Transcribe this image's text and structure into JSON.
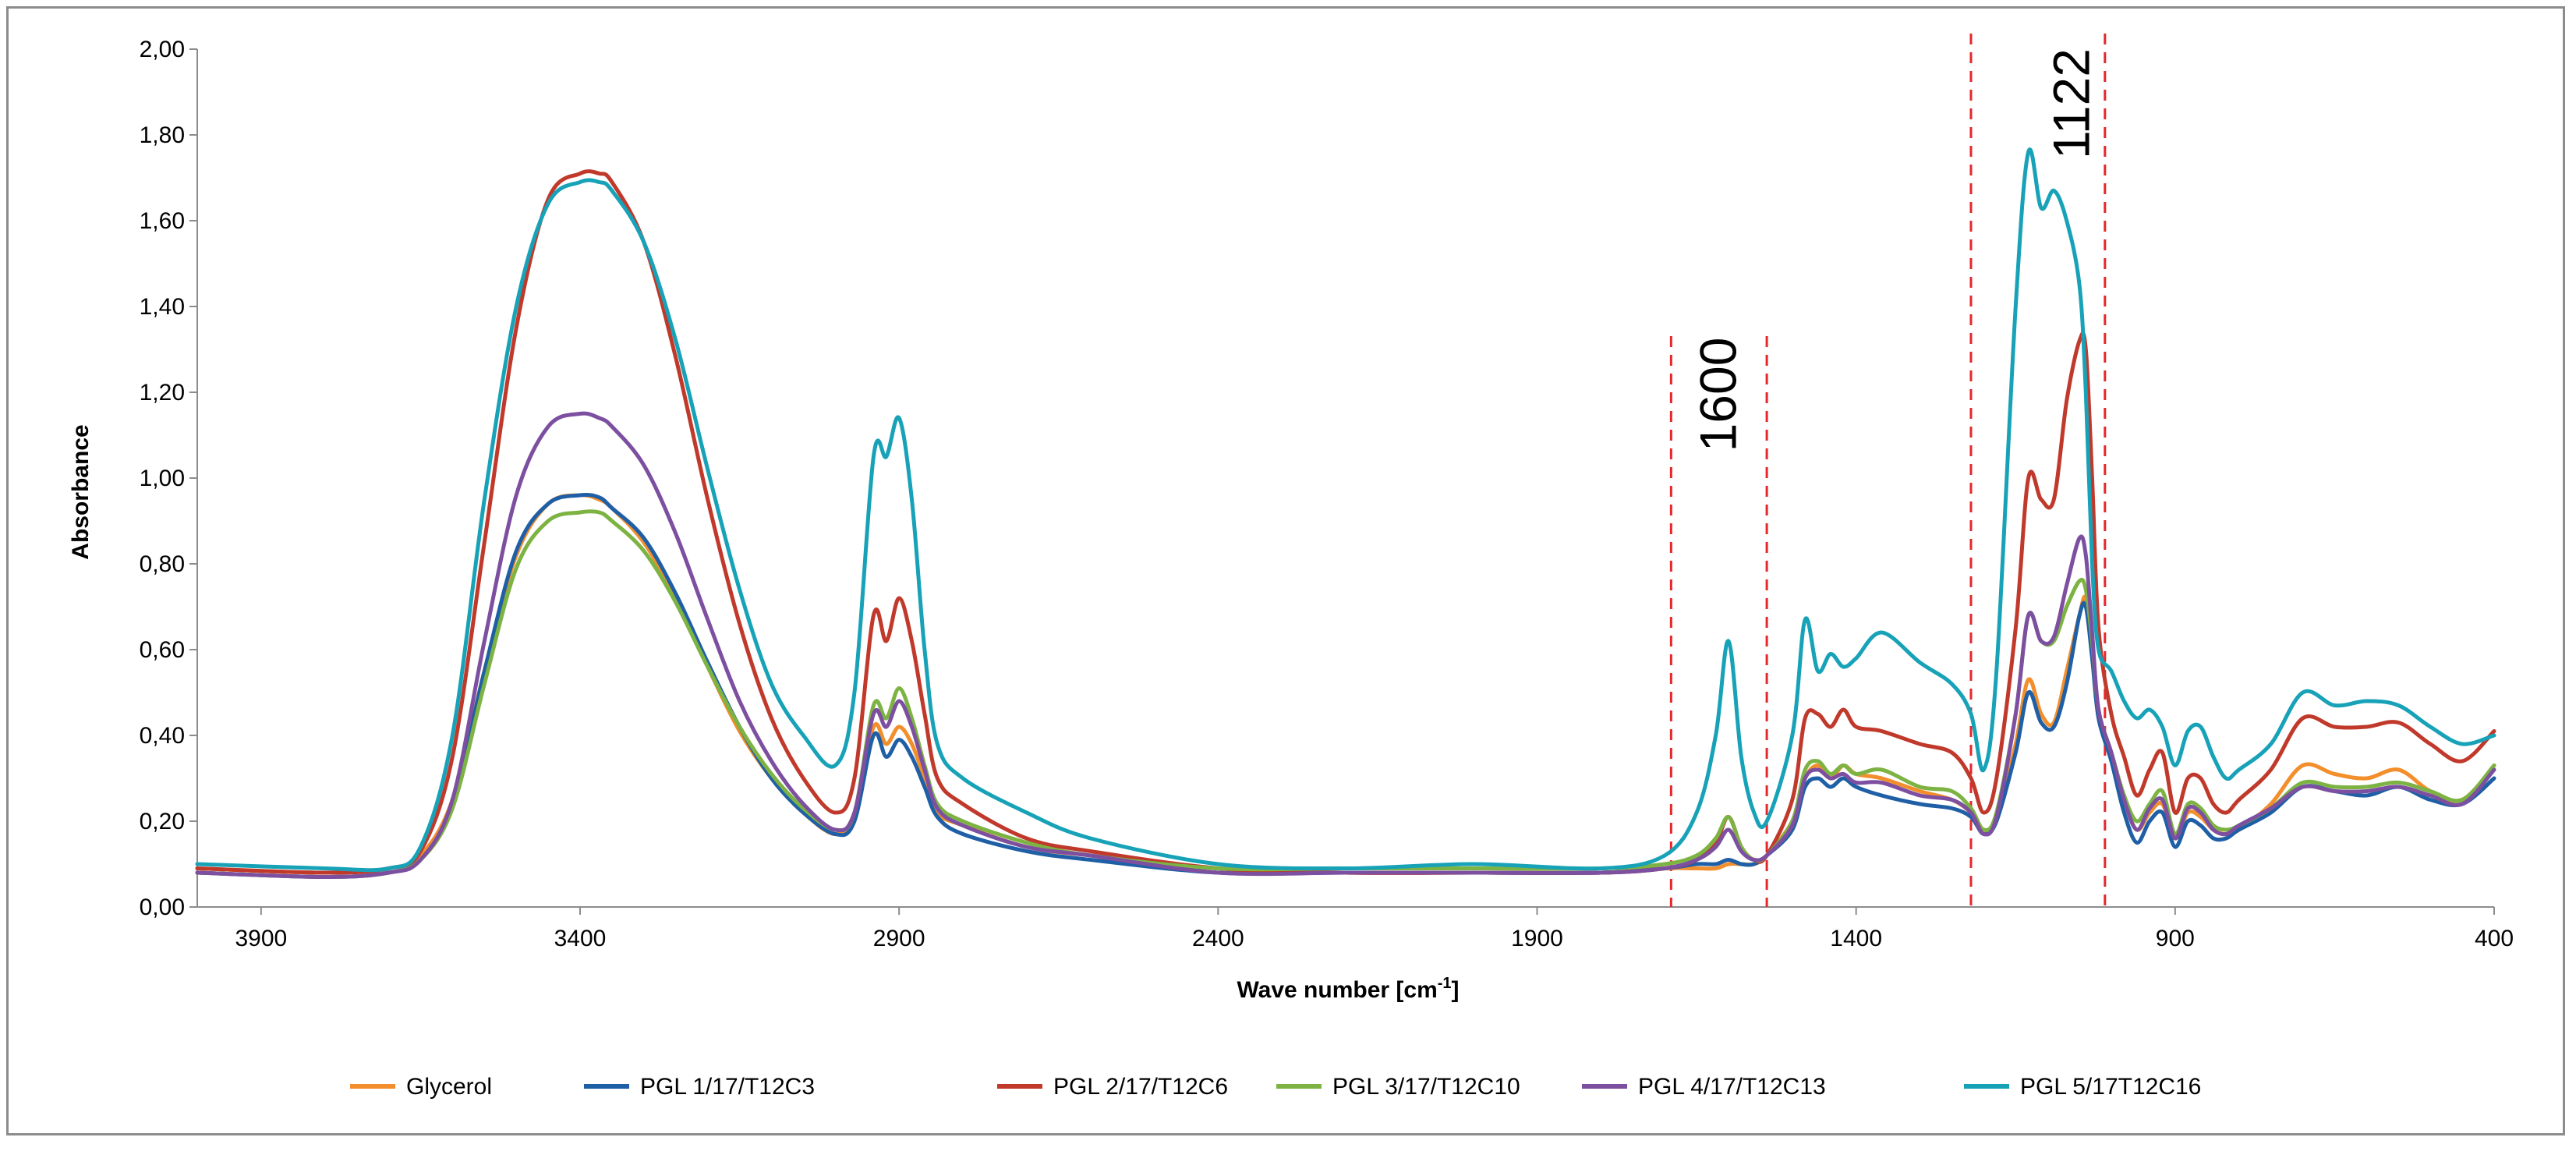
{
  "chart_data": {
    "type": "line",
    "title": "",
    "xlabel": "Wave number [cm",
    "xlabel_sup": "-1",
    "xlabel_end": "]",
    "ylabel": "Absorbance",
    "xlim": [
      4000,
      400
    ],
    "ylim": [
      0,
      2.0
    ],
    "x_ticks": [
      "3900",
      "3400",
      "2900",
      "2400",
      "1900",
      "1400",
      "900",
      "400"
    ],
    "y_ticks": [
      "0,00",
      "0,20",
      "0,40",
      "0,60",
      "0,80",
      "1,00",
      "1,20",
      "1,40",
      "1,60",
      "1,80",
      "2,00"
    ],
    "x_tick_values": [
      3900,
      3400,
      2900,
      2400,
      1900,
      1400,
      900,
      400
    ],
    "y_tick_values": [
      0,
      0.2,
      0.4,
      0.6,
      0.8,
      1.0,
      1.2,
      1.4,
      1.6,
      1.8,
      2.0
    ],
    "grid": false,
    "legend_position": "bottom",
    "annotations": [
      {
        "text": "1600",
        "x_left": 1690,
        "x_right": 1540
      },
      {
        "text": "1122",
        "x_left": 1220,
        "x_right": 1010
      }
    ],
    "x": [
      4000,
      3800,
      3700,
      3650,
      3600,
      3550,
      3500,
      3450,
      3400,
      3370,
      3350,
      3300,
      3250,
      3200,
      3150,
      3100,
      3050,
      3000,
      2970,
      2940,
      2920,
      2900,
      2880,
      2860,
      2840,
      2800,
      2700,
      2600,
      2400,
      2200,
      2000,
      1800,
      1700,
      1650,
      1620,
      1600,
      1580,
      1560,
      1540,
      1500,
      1480,
      1460,
      1440,
      1420,
      1400,
      1360,
      1300,
      1250,
      1220,
      1200,
      1180,
      1150,
      1130,
      1110,
      1090,
      1070,
      1050,
      1040,
      1030,
      1020,
      1000,
      980,
      960,
      940,
      920,
      900,
      880,
      860,
      840,
      820,
      800,
      750,
      700,
      650,
      600,
      550,
      500,
      450,
      400
    ],
    "series": [
      {
        "name": "Glycerol",
        "color": "#f28e2b",
        "values": [
          0.09,
          0.08,
          0.09,
          0.12,
          0.25,
          0.55,
          0.82,
          0.94,
          0.96,
          0.95,
          0.93,
          0.85,
          0.72,
          0.56,
          0.41,
          0.3,
          0.22,
          0.17,
          0.22,
          0.42,
          0.38,
          0.42,
          0.38,
          0.3,
          0.22,
          0.19,
          0.14,
          0.12,
          0.09,
          0.08,
          0.08,
          0.08,
          0.09,
          0.09,
          0.09,
          0.1,
          0.1,
          0.1,
          0.12,
          0.2,
          0.3,
          0.33,
          0.3,
          0.33,
          0.31,
          0.3,
          0.27,
          0.25,
          0.22,
          0.18,
          0.2,
          0.38,
          0.53,
          0.45,
          0.43,
          0.55,
          0.68,
          0.72,
          0.6,
          0.45,
          0.35,
          0.25,
          0.18,
          0.22,
          0.24,
          0.16,
          0.22,
          0.21,
          0.18,
          0.17,
          0.18,
          0.24,
          0.33,
          0.31,
          0.3,
          0.32,
          0.27,
          0.25,
          0.33
        ]
      },
      {
        "name": "PGL 1/17/T12C3",
        "color": "#1f5fa6",
        "values": [
          0.08,
          0.07,
          0.08,
          0.11,
          0.24,
          0.55,
          0.83,
          0.94,
          0.96,
          0.955,
          0.93,
          0.86,
          0.73,
          0.57,
          0.42,
          0.3,
          0.22,
          0.17,
          0.2,
          0.4,
          0.35,
          0.39,
          0.35,
          0.28,
          0.21,
          0.17,
          0.13,
          0.11,
          0.08,
          0.08,
          0.08,
          0.08,
          0.09,
          0.1,
          0.1,
          0.11,
          0.1,
          0.1,
          0.12,
          0.18,
          0.28,
          0.3,
          0.28,
          0.3,
          0.28,
          0.26,
          0.24,
          0.23,
          0.21,
          0.17,
          0.2,
          0.36,
          0.5,
          0.43,
          0.42,
          0.52,
          0.68,
          0.7,
          0.58,
          0.44,
          0.34,
          0.22,
          0.15,
          0.2,
          0.22,
          0.14,
          0.2,
          0.19,
          0.16,
          0.16,
          0.18,
          0.22,
          0.28,
          0.27,
          0.26,
          0.28,
          0.25,
          0.24,
          0.3
        ]
      },
      {
        "name": "PGL 2/17/T12C6",
        "color": "#c0392b",
        "values": [
          0.09,
          0.08,
          0.09,
          0.13,
          0.35,
          0.85,
          1.35,
          1.65,
          1.71,
          1.71,
          1.69,
          1.55,
          1.28,
          0.95,
          0.66,
          0.44,
          0.3,
          0.22,
          0.3,
          0.68,
          0.62,
          0.72,
          0.62,
          0.45,
          0.3,
          0.24,
          0.16,
          0.13,
          0.09,
          0.08,
          0.08,
          0.08,
          0.09,
          0.11,
          0.15,
          0.21,
          0.14,
          0.11,
          0.12,
          0.25,
          0.44,
          0.45,
          0.42,
          0.46,
          0.42,
          0.41,
          0.38,
          0.36,
          0.3,
          0.22,
          0.3,
          0.65,
          1.0,
          0.95,
          0.95,
          1.18,
          1.32,
          1.3,
          1.0,
          0.65,
          0.45,
          0.35,
          0.26,
          0.32,
          0.36,
          0.22,
          0.3,
          0.3,
          0.24,
          0.22,
          0.25,
          0.32,
          0.44,
          0.42,
          0.42,
          0.43,
          0.38,
          0.34,
          0.41
        ]
      },
      {
        "name": "PGL 3/17/T12C10",
        "color": "#7cb342",
        "values": [
          0.08,
          0.07,
          0.08,
          0.11,
          0.23,
          0.52,
          0.79,
          0.9,
          0.92,
          0.92,
          0.9,
          0.83,
          0.71,
          0.56,
          0.42,
          0.31,
          0.23,
          0.18,
          0.22,
          0.47,
          0.44,
          0.51,
          0.44,
          0.33,
          0.24,
          0.2,
          0.15,
          0.12,
          0.09,
          0.09,
          0.09,
          0.09,
          0.1,
          0.12,
          0.16,
          0.21,
          0.14,
          0.11,
          0.12,
          0.2,
          0.32,
          0.34,
          0.31,
          0.33,
          0.31,
          0.32,
          0.28,
          0.27,
          0.23,
          0.18,
          0.22,
          0.45,
          0.68,
          0.62,
          0.62,
          0.7,
          0.76,
          0.74,
          0.62,
          0.46,
          0.36,
          0.26,
          0.2,
          0.24,
          0.27,
          0.17,
          0.24,
          0.23,
          0.19,
          0.18,
          0.19,
          0.23,
          0.29,
          0.28,
          0.28,
          0.29,
          0.27,
          0.25,
          0.33
        ]
      },
      {
        "name": "PGL 4/17/T12C13",
        "color": "#7d4fa0",
        "values": [
          0.08,
          0.07,
          0.08,
          0.11,
          0.25,
          0.62,
          0.96,
          1.12,
          1.15,
          1.14,
          1.12,
          1.03,
          0.87,
          0.67,
          0.48,
          0.34,
          0.24,
          0.18,
          0.22,
          0.45,
          0.42,
          0.48,
          0.42,
          0.32,
          0.23,
          0.19,
          0.14,
          0.12,
          0.08,
          0.08,
          0.08,
          0.08,
          0.09,
          0.11,
          0.14,
          0.18,
          0.13,
          0.11,
          0.12,
          0.19,
          0.3,
          0.32,
          0.3,
          0.31,
          0.29,
          0.29,
          0.26,
          0.25,
          0.22,
          0.17,
          0.21,
          0.45,
          0.68,
          0.62,
          0.63,
          0.75,
          0.86,
          0.82,
          0.64,
          0.46,
          0.36,
          0.25,
          0.18,
          0.23,
          0.25,
          0.16,
          0.23,
          0.22,
          0.18,
          0.17,
          0.19,
          0.23,
          0.28,
          0.27,
          0.27,
          0.28,
          0.26,
          0.24,
          0.32
        ]
      },
      {
        "name": "PGL 5/17T12C16",
        "color": "#17a2b8",
        "values": [
          0.1,
          0.09,
          0.09,
          0.14,
          0.4,
          0.95,
          1.4,
          1.64,
          1.69,
          1.69,
          1.67,
          1.55,
          1.32,
          1.02,
          0.74,
          0.52,
          0.4,
          0.33,
          0.5,
          1.05,
          1.05,
          1.14,
          0.95,
          0.6,
          0.38,
          0.3,
          0.22,
          0.16,
          0.1,
          0.09,
          0.1,
          0.09,
          0.12,
          0.22,
          0.4,
          0.62,
          0.35,
          0.22,
          0.2,
          0.4,
          0.67,
          0.55,
          0.59,
          0.56,
          0.58,
          0.64,
          0.57,
          0.52,
          0.45,
          0.32,
          0.55,
          1.4,
          1.76,
          1.63,
          1.67,
          1.6,
          1.45,
          1.2,
          0.8,
          0.6,
          0.55,
          0.48,
          0.44,
          0.46,
          0.42,
          0.33,
          0.41,
          0.42,
          0.35,
          0.3,
          0.32,
          0.38,
          0.5,
          0.47,
          0.48,
          0.47,
          0.42,
          0.38,
          0.4
        ]
      }
    ]
  }
}
